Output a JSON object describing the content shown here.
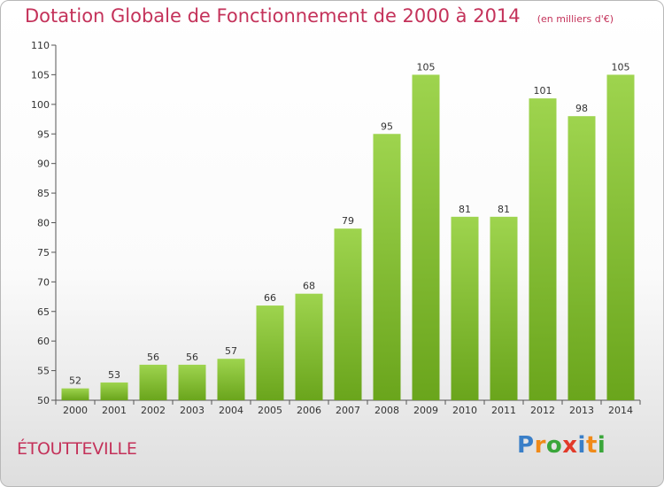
{
  "chart_data": {
    "type": "bar",
    "title": "Dotation Globale de Fonctionnement de 2000 à 2014",
    "subtitle": "(en milliers d'€)",
    "categories": [
      "2000",
      "2001",
      "2002",
      "2003",
      "2004",
      "2005",
      "2006",
      "2007",
      "2008",
      "2009",
      "2010",
      "2011",
      "2012",
      "2013",
      "2014"
    ],
    "values": [
      52,
      53,
      56,
      56,
      57,
      66,
      68,
      79,
      95,
      105,
      81,
      81,
      101,
      98,
      105
    ],
    "ylim": [
      50,
      110
    ],
    "yticks": [
      50,
      55,
      60,
      65,
      70,
      75,
      80,
      85,
      90,
      95,
      100,
      105,
      110
    ],
    "xlabel": "",
    "ylabel": "",
    "grid": false,
    "bar_color_light": "#9ed44e",
    "bar_color_dark": "#6aa51c"
  },
  "commune": "ÉTOUTTEVILLE",
  "logo": {
    "letters": [
      "P",
      "r",
      "o",
      "x",
      "i",
      "t",
      "i"
    ],
    "colors": [
      "#3a7fc8",
      "#f08a18",
      "#3aa63a",
      "#e23a2a",
      "#3a7fc8",
      "#f08a18",
      "#3aa63a"
    ]
  }
}
